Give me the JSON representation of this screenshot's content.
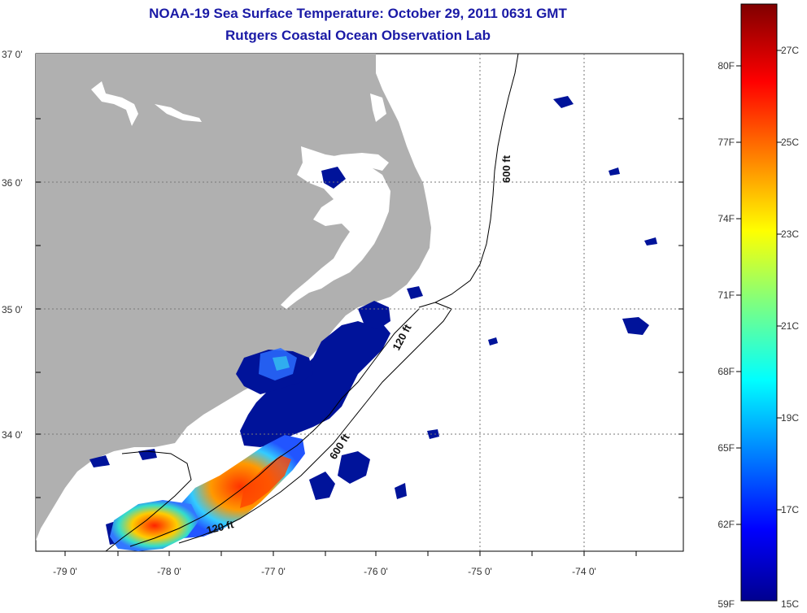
{
  "title": {
    "line1": "NOAA-19 Sea Surface Temperature:  October 29, 2011 0631 GMT",
    "line2": "Rutgers Coastal Ocean Observation Lab"
  },
  "map": {
    "lat_labels": [
      "37 0'",
      "36 0'",
      "35 0'",
      "34 0'"
    ],
    "lon_labels": [
      "-79 0'",
      "-78 0'",
      "-77 0'",
      "-76 0'",
      "-75 0'",
      "-74 0'"
    ],
    "contour_labels": {
      "c600_north": "600 ft",
      "c120_north": "120 ft",
      "c600_south": "600 ft",
      "c120_south": "120 ft"
    },
    "colors": {
      "land": "#b0b0b0",
      "ocean": "#ffffff",
      "cold": "#00139a"
    }
  },
  "colorbar": {
    "fahrenheit": [
      "80F",
      "77F",
      "74F",
      "71F",
      "68F",
      "65F",
      "62F",
      "59F"
    ],
    "celsius": [
      "27C",
      "25C",
      "23C",
      "21C",
      "19C",
      "17C",
      "15C"
    ],
    "min_label": "59F",
    "min_c_label": "15C"
  }
}
